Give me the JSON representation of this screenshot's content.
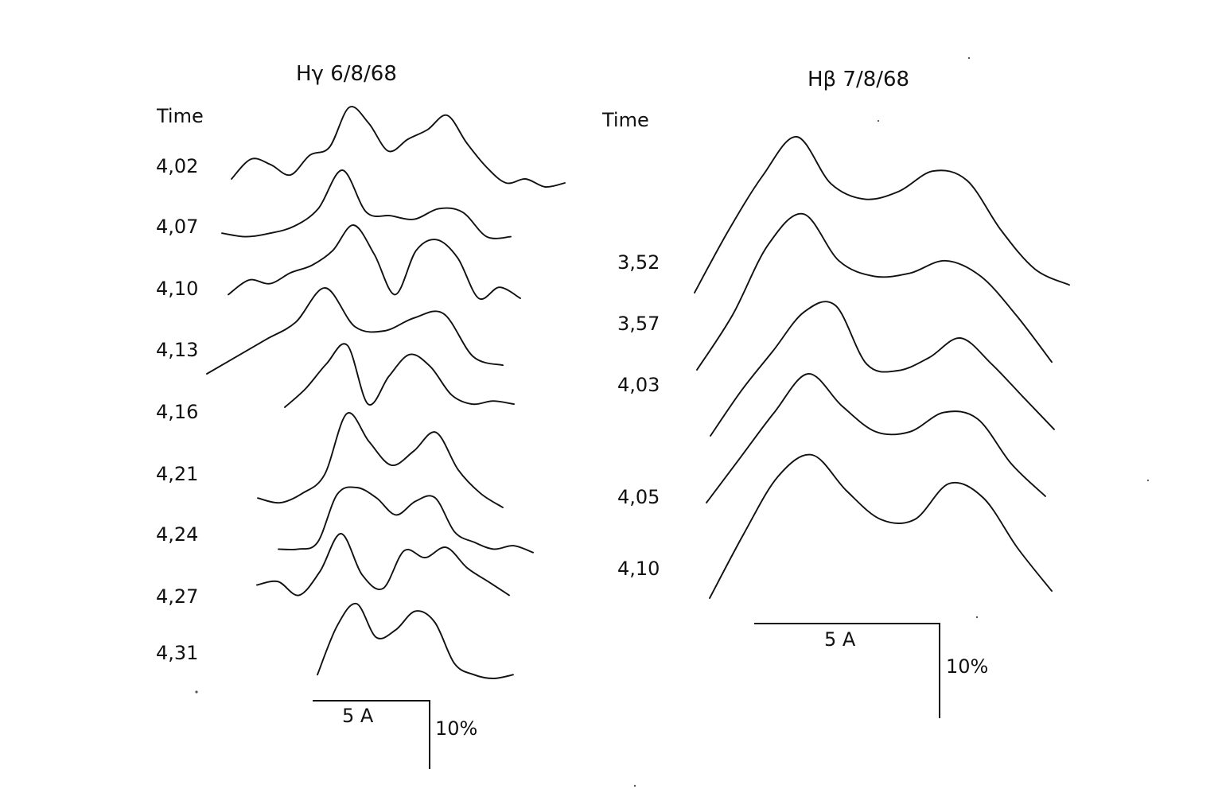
{
  "chart_data": [
    {
      "type": "line",
      "title": "Hγ 6/8/68",
      "time_header": "Time",
      "scale": {
        "wavelength_label": "5 A",
        "intensity_label": "10%"
      },
      "series": [
        {
          "name": "4,02",
          "values": [
            0.1,
            0.35,
            0.28,
            0.15,
            0.4,
            0.5,
            1.0,
            0.8,
            0.45,
            0.6,
            0.72,
            0.9,
            0.55,
            0.25,
            0.05,
            0.1,
            0.0,
            0.05
          ]
        },
        {
          "name": "4,07",
          "values": [
            0.1,
            0.05,
            0.1,
            0.2,
            0.45,
            1.0,
            0.4,
            0.35,
            0.3,
            0.45,
            0.4,
            0.05,
            0.05
          ]
        },
        {
          "name": "4,10",
          "values": [
            0.05,
            0.25,
            0.2,
            0.35,
            0.45,
            0.65,
            1.0,
            0.6,
            0.05,
            0.65,
            0.8,
            0.55,
            0.0,
            0.15,
            0.0
          ]
        },
        {
          "name": "4,13",
          "values": [
            0.0,
            0.2,
            0.4,
            0.6,
            1.0,
            0.55,
            0.5,
            0.65,
            0.7,
            0.2,
            0.1
          ]
        },
        {
          "name": "4,16",
          "values": [
            0.0,
            0.3,
            0.7,
            1.0,
            0.05,
            0.5,
            0.85,
            0.65,
            0.2,
            0.05,
            0.1,
            0.05
          ]
        },
        {
          "name": "4,21",
          "values": [
            0.1,
            0.05,
            0.15,
            0.35,
            1.0,
            0.7,
            0.45,
            0.6,
            0.8,
            0.4,
            0.15,
            0.0
          ]
        },
        {
          "name": "4,24",
          "values": [
            0.1,
            0.1,
            0.2,
            0.9,
            1.0,
            0.85,
            0.6,
            0.8,
            0.85,
            0.35,
            0.2,
            0.1,
            0.15,
            0.05
          ]
        },
        {
          "name": "4,27",
          "values": [
            0.25,
            0.3,
            0.1,
            0.45,
            1.0,
            0.4,
            0.2,
            0.75,
            0.65,
            0.8,
            0.5,
            0.3,
            0.1
          ]
        },
        {
          "name": "4,31",
          "values": [
            0.05,
            0.7,
            1.0,
            0.55,
            0.65,
            0.9,
            0.75,
            0.2,
            0.05,
            0.0,
            0.05
          ]
        }
      ]
    },
    {
      "type": "line",
      "title": "Hβ 7/8/68",
      "time_header": "Time",
      "scale": {
        "wavelength_label": "5 A",
        "intensity_label": "10%"
      },
      "series": [
        {
          "name": "3,52",
          "values": [
            0.0,
            0.4,
            0.75,
            1.0,
            0.7,
            0.6,
            0.65,
            0.78,
            0.72,
            0.4,
            0.15,
            0.05
          ]
        },
        {
          "name": "3,57",
          "values": [
            0.0,
            0.35,
            0.8,
            1.0,
            0.7,
            0.6,
            0.62,
            0.7,
            0.6,
            0.35,
            0.05
          ]
        },
        {
          "name": "4,03",
          "values": [
            0.0,
            0.35,
            0.65,
            0.95,
            1.0,
            0.55,
            0.5,
            0.6,
            0.75,
            0.55,
            0.3,
            0.05
          ]
        },
        {
          "name": "4,05",
          "values": [
            0.0,
            0.35,
            0.7,
            1.0,
            0.75,
            0.55,
            0.55,
            0.7,
            0.65,
            0.3,
            0.05
          ]
        },
        {
          "name": "4,10",
          "values": [
            0.0,
            0.45,
            0.85,
            1.0,
            0.75,
            0.55,
            0.55,
            0.8,
            0.7,
            0.35,
            0.05
          ]
        }
      ]
    }
  ]
}
